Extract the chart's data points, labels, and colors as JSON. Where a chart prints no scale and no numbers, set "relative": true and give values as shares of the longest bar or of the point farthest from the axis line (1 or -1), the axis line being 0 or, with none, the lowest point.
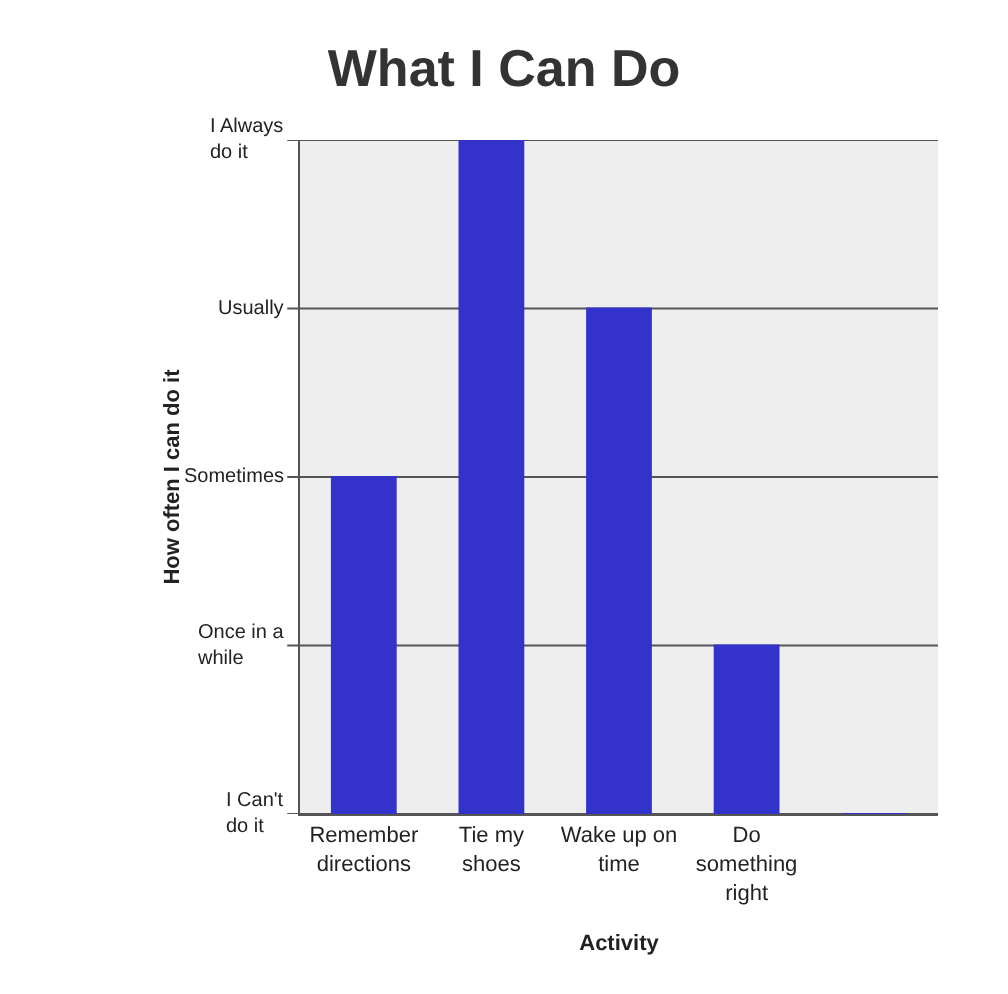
{
  "chart_data": {
    "type": "bar",
    "title": "What I Can Do",
    "xlabel": "Activity",
    "ylabel": "How often I can do it",
    "categories": [
      "Remember directions",
      "Tie my shoes",
      "Wake up on time",
      "Do something right",
      null
    ],
    "values": [
      0.5,
      1,
      0.75,
      0.25,
      0
    ],
    "color": "#3333cc",
    "relative": true,
    "annotations": [
      "I Can't do it",
      "Once in a while",
      "Sometimes",
      "Usually",
      "I Always do it"
    ],
    "grid": "y",
    "legend": false
  }
}
